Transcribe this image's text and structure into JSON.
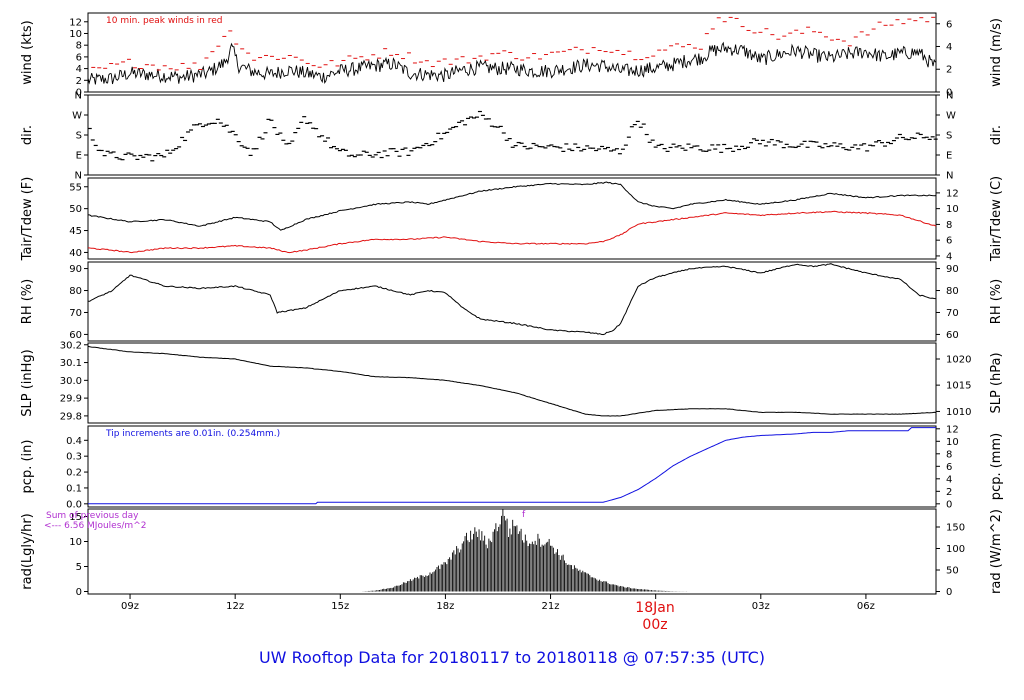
{
  "chart_data": {
    "type": "line",
    "title": "UW Rooftop Data for 20180117  to  20180118 @ 07:57:35  (UTC)",
    "x_axis": {
      "range_hours_from_00z_jan17": [
        7.8,
        32.0
      ],
      "ticks": [
        {
          "hour": 9,
          "label": "09z"
        },
        {
          "hour": 12,
          "label": "12z"
        },
        {
          "hour": 15,
          "label": "15z"
        },
        {
          "hour": 18,
          "label": "18z"
        },
        {
          "hour": 21,
          "label": "21z"
        },
        {
          "hour": 27,
          "label": "03z"
        },
        {
          "hour": 30,
          "label": "06z"
        }
      ],
      "date_marker": {
        "hour": 24,
        "line1": "18Jan",
        "line2": "00z"
      }
    },
    "panels": [
      {
        "id": "wind",
        "ylabel_left": "wind (kts)",
        "ylabel_right": "wind (m/s)",
        "ylim": [
          0,
          13.5
        ],
        "ticks_left": [
          0,
          2,
          4,
          6,
          8,
          10,
          12
        ],
        "ticks_right": [
          {
            "v": 0,
            "label": "0"
          },
          {
            "v": 3.89,
            "label": "2"
          },
          {
            "v": 7.78,
            "label": "4"
          },
          {
            "v": 11.66,
            "label": "6"
          }
        ],
        "annotation": "10 min. peak winds in red",
        "series": [
          {
            "name": "wind speed (kts)",
            "color": "#000000",
            "x": [
              7.8,
              8.5,
              9.0,
              10.0,
              10.5,
              11.2,
              11.7,
              11.9,
              12.1,
              12.5,
              13.0,
              13.5,
              14.0,
              14.5,
              15.0,
              15.5,
              16.0,
              16.5,
              17.0,
              17.5,
              18.0,
              18.5,
              19.0,
              19.5,
              20.0,
              20.5,
              21.0,
              21.5,
              22.0,
              22.5,
              23.0,
              23.5,
              24.0,
              24.5,
              25.0,
              25.3,
              25.6,
              26.0,
              26.5,
              27.0,
              27.5,
              28.0,
              28.5,
              29.0,
              29.5,
              30.0,
              30.5,
              31.0,
              31.5,
              32.0
            ],
            "y": [
              2.0,
              2.3,
              3.2,
              2.8,
              2.5,
              3.2,
              5.0,
              7.5,
              4.5,
              3.5,
              3.0,
              3.8,
              3.2,
              2.6,
              3.6,
              4.0,
              4.5,
              4.8,
              3.2,
              3.0,
              2.8,
              3.8,
              4.2,
              4.0,
              4.0,
              3.6,
              3.6,
              4.1,
              4.6,
              4.5,
              3.6,
              3.7,
              4.1,
              4.7,
              5.6,
              5.8,
              7.0,
              7.5,
              7.1,
              5.5,
              6.4,
              7.1,
              6.3,
              5.8,
              6.5,
              6.9,
              6.0,
              6.6,
              6.8,
              4.2
            ]
          },
          {
            "name": "10 min. peak winds",
            "color": "#e01010",
            "x": [
              8.0,
              9.0,
              10.0,
              11.0,
              11.8,
              12.5,
              13.5,
              14.5,
              15.5,
              16.5,
              17.5,
              18.5,
              19.5,
              20.5,
              21.5,
              22.5,
              23.5,
              24.5,
              25.3,
              25.8,
              26.5,
              27.5,
              28.5,
              29.5,
              30.5,
              31.2,
              31.7
            ],
            "y": [
              3.6,
              5.0,
              4.4,
              4.4,
              10.5,
              5.8,
              6.2,
              4.4,
              5.8,
              7.0,
              5.0,
              5.4,
              6.6,
              6.0,
              6.8,
              7.8,
              6.2,
              7.6,
              8.0,
              13.0,
              11.5,
              9.5,
              10.5,
              8.5,
              11.5,
              12.3,
              12.5
            ]
          }
        ]
      },
      {
        "id": "dir",
        "ylabel_left": "dir.",
        "ylabel_right": "dir.",
        "ylim": [
          0,
          360
        ],
        "tick_labels": [
          {
            "v": 0,
            "label": "N"
          },
          {
            "v": 90,
            "label": "E"
          },
          {
            "v": 180,
            "label": "S"
          },
          {
            "v": 270,
            "label": "W"
          },
          {
            "v": 360,
            "label": "N"
          }
        ],
        "series": [
          {
            "name": "wind direction (deg)",
            "color": "#000000",
            "x": [
              7.8,
              8.0,
              8.3,
              9.0,
              10.0,
              11.0,
              11.5,
              12.0,
              12.5,
              13.0,
              13.5,
              14.0,
              14.5,
              15.0,
              15.5,
              16.0,
              17.0,
              18.0,
              18.5,
              19.0,
              19.5,
              20.0,
              21.0,
              22.0,
              22.5,
              23.0,
              23.5,
              24.0,
              25.0,
              26.0,
              27.0,
              28.0,
              29.0,
              30.0,
              31.0,
              32.0
            ],
            "y": [
              210,
              150,
              90,
              80,
              85,
              235,
              250,
              180,
              95,
              250,
              110,
              260,
              170,
              100,
              85,
              95,
              105,
              185,
              240,
              270,
              220,
              130,
              125,
              120,
              115,
              105,
              255,
              120,
              125,
              120,
              150,
              135,
              130,
              125,
              165,
              175
            ]
          }
        ]
      },
      {
        "id": "temp",
        "ylabel_left": "Tair/Tdew (F)",
        "ylabel_right": "Tair/Tdew (C)",
        "ylim": [
          38.5,
          57
        ],
        "ticks_left": [
          40,
          45,
          50,
          55
        ],
        "ticks_right": [
          {
            "v": 39.2,
            "label": "4"
          },
          {
            "v": 42.8,
            "label": "6"
          },
          {
            "v": 46.4,
            "label": "8"
          },
          {
            "v": 50.0,
            "label": "10"
          },
          {
            "v": 53.6,
            "label": "12"
          }
        ],
        "series": [
          {
            "name": "Tair (F)",
            "color": "#000000",
            "x": [
              7.8,
              9.0,
              10.0,
              11.0,
              12.0,
              13.0,
              13.3,
              14.0,
              15.0,
              16.0,
              17.0,
              17.5,
              18.0,
              19.0,
              20.0,
              21.0,
              22.0,
              22.6,
              23.0,
              23.5,
              24.0,
              24.5,
              25.0,
              26.0,
              27.0,
              28.0,
              29.0,
              30.0,
              31.0,
              32.0
            ],
            "y": [
              48.5,
              47.0,
              47.5,
              46.0,
              48.0,
              47.0,
              45.0,
              47.5,
              49.5,
              51.0,
              51.5,
              51.0,
              52.0,
              54.0,
              55.0,
              55.7,
              55.5,
              56.0,
              55.5,
              51.5,
              50.5,
              50.0,
              51.0,
              52.0,
              51.0,
              52.0,
              53.5,
              52.5,
              53.0,
              53.0
            ]
          },
          {
            "name": "Tdew (F)",
            "color": "#e01010",
            "x": [
              7.8,
              8.5,
              9.0,
              10.0,
              11.0,
              12.0,
              13.0,
              13.5,
              14.0,
              15.0,
              16.0,
              17.0,
              18.0,
              19.0,
              20.0,
              21.0,
              22.0,
              22.5,
              23.0,
              23.5,
              24.0,
              25.0,
              26.0,
              27.0,
              28.0,
              29.0,
              30.0,
              31.0,
              32.0
            ],
            "y": [
              41.0,
              40.5,
              40.0,
              41.0,
              41.0,
              41.5,
              41.0,
              40.0,
              40.5,
              42.0,
              43.0,
              43.0,
              43.5,
              42.5,
              42.0,
              42.0,
              42.0,
              42.5,
              44.0,
              46.5,
              47.0,
              48.0,
              49.0,
              48.5,
              49.0,
              49.3,
              49.0,
              48.5,
              46.0
            ]
          }
        ]
      },
      {
        "id": "rh",
        "ylabel_left": "RH (%)",
        "ylabel_right": "RH (%)",
        "ylim": [
          57,
          93
        ],
        "ticks_left": [
          60,
          70,
          80,
          90
        ],
        "ticks_right": [
          {
            "v": 60,
            "label": "60"
          },
          {
            "v": 70,
            "label": "70"
          },
          {
            "v": 80,
            "label": "80"
          },
          {
            "v": 90,
            "label": "90"
          }
        ],
        "series": [
          {
            "name": "RH (%)",
            "color": "#000000",
            "x": [
              7.8,
              8.5,
              9.0,
              10.0,
              11.0,
              12.0,
              13.0,
              13.2,
              14.0,
              15.0,
              16.0,
              17.0,
              17.5,
              18.0,
              18.5,
              19.0,
              20.0,
              21.0,
              22.0,
              22.5,
              22.8,
              23.0,
              23.5,
              24.0,
              25.0,
              26.0,
              27.0,
              28.0,
              28.5,
              29.0,
              30.0,
              31.0,
              31.5,
              32.0
            ],
            "y": [
              75,
              80,
              87,
              82,
              81,
              82,
              78,
              70,
              72,
              80,
              82,
              78,
              80,
              79,
              72,
              67,
              65,
              62,
              61,
              60,
              62,
              65,
              82,
              86,
              90,
              91,
              88,
              92,
              91,
              92,
              88,
              85,
              78,
              76
            ]
          }
        ]
      },
      {
        "id": "slp",
        "ylabel_left": "SLP (inHg)",
        "ylabel_right": "SLP (hPa)",
        "ylim": [
          29.76,
          30.21
        ],
        "ticks_left": [
          29.8,
          29.9,
          30.0,
          30.1,
          30.2
        ],
        "ticks_right": [
          {
            "v": 29.825,
            "label": "1010"
          },
          {
            "v": 29.973,
            "label": "1015"
          },
          {
            "v": 30.12,
            "label": "1020"
          }
        ],
        "series": [
          {
            "name": "SLP (inHg)",
            "color": "#000000",
            "x": [
              7.8,
              9.0,
              10.0,
              11.0,
              12.0,
              13.0,
              14.0,
              15.0,
              16.0,
              17.0,
              18.0,
              19.0,
              20.0,
              21.0,
              22.0,
              22.5,
              23.0,
              24.0,
              25.0,
              26.0,
              27.0,
              28.0,
              29.0,
              30.0,
              31.0,
              32.0
            ],
            "y": [
              30.19,
              30.16,
              30.15,
              30.13,
              30.12,
              30.08,
              30.07,
              30.05,
              30.02,
              30.015,
              30.0,
              29.97,
              29.93,
              29.87,
              29.81,
              29.8,
              29.8,
              29.83,
              29.84,
              29.84,
              29.82,
              29.82,
              29.81,
              29.81,
              29.81,
              29.82
            ]
          }
        ]
      },
      {
        "id": "pcp",
        "ylabel_left": "pcp. (in)",
        "ylabel_right": "pcp. (mm)",
        "ylim": [
          -0.02,
          0.49
        ],
        "ticks_left": [
          0.0,
          0.1,
          0.2,
          0.3,
          0.4
        ],
        "ticks_right": [
          {
            "v": 0.0,
            "label": "0"
          },
          {
            "v": 0.0787,
            "label": "2"
          },
          {
            "v": 0.1575,
            "label": "4"
          },
          {
            "v": 0.2362,
            "label": "6"
          },
          {
            "v": 0.315,
            "label": "8"
          },
          {
            "v": 0.3937,
            "label": "10"
          },
          {
            "v": 0.4724,
            "label": "12"
          }
        ],
        "annotation": "Tip increments are 0.01in. (0.254mm.)",
        "series": [
          {
            "name": "accumulated precipitation (in)",
            "color": "#1010e0",
            "x": [
              7.8,
              14.3,
              14.35,
              22.5,
              23.0,
              23.5,
              24.0,
              24.5,
              25.0,
              25.5,
              26.0,
              26.5,
              27.0,
              28.0,
              28.5,
              29.0,
              29.5,
              30.0,
              30.5,
              31.2,
              31.3,
              32.0
            ],
            "y": [
              0.0,
              0.0,
              0.01,
              0.01,
              0.04,
              0.09,
              0.16,
              0.24,
              0.3,
              0.35,
              0.4,
              0.42,
              0.43,
              0.44,
              0.45,
              0.45,
              0.46,
              0.46,
              0.46,
              0.46,
              0.48,
              0.48
            ]
          }
        ]
      },
      {
        "id": "rad",
        "ylabel_left": "rad(Lgly/hr)",
        "ylabel_right": "rad (W/m^2)",
        "ylim": [
          -0.5,
          16.5
        ],
        "ticks_left": [
          0,
          5,
          10,
          15
        ],
        "ticks_right": [
          {
            "v": 0,
            "label": "0"
          },
          {
            "v": 4.3,
            "label": "50"
          },
          {
            "v": 8.6,
            "label": "100"
          },
          {
            "v": 12.9,
            "label": "150"
          }
        ],
        "annotation_lines": [
          "Sum of previous day",
          "<--- 6.56 MJoules/m^2"
        ],
        "marker_label": "f",
        "series": [
          {
            "name": "solar radiation (Lgly/hr)",
            "color": "#000000",
            "x": [
              15.6,
              16.0,
              16.5,
              17.0,
              17.5,
              18.0,
              18.3,
              18.6,
              18.9,
              19.2,
              19.5,
              19.7,
              19.8,
              20.0,
              20.3,
              20.6,
              21.0,
              21.3,
              21.6,
              22.0,
              22.5,
              23.0,
              23.5,
              24.0,
              24.5,
              25.0
            ],
            "y": [
              0.0,
              0.2,
              0.8,
              2.2,
              3.5,
              5.5,
              8.0,
              10.5,
              12.0,
              9.5,
              13.5,
              16.0,
              12.0,
              13.5,
              10.0,
              10.5,
              9.5,
              7.0,
              5.0,
              3.5,
              2.0,
              1.0,
              0.5,
              0.2,
              0.05,
              0.0
            ]
          }
        ]
      }
    ]
  }
}
